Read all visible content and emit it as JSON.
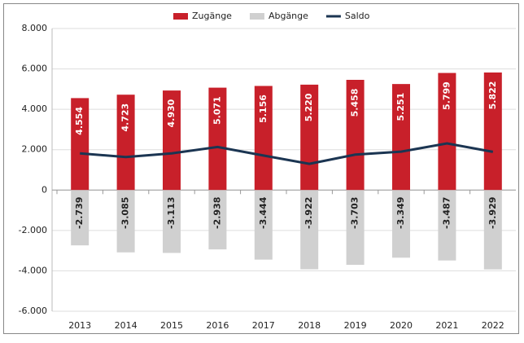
{
  "chart_data": {
    "type": "bar",
    "categories": [
      "2013",
      "2014",
      "2015",
      "2016",
      "2017",
      "2018",
      "2019",
      "2020",
      "2021",
      "2022"
    ],
    "series": [
      {
        "name": "Zugänge",
        "color": "#c8202a",
        "values": [
          4554,
          4723,
          4930,
          5071,
          5156,
          5220,
          5458,
          5251,
          5799,
          5822
        ],
        "value_labels": [
          "4.554",
          "4.723",
          "4.930",
          "5.071",
          "5.156",
          "5.220",
          "5.458",
          "5.251",
          "5.799",
          "5.822"
        ]
      },
      {
        "name": "Abgänge",
        "color": "#d0d0d0",
        "values": [
          -2739,
          -3085,
          -3113,
          -2938,
          -3444,
          -3922,
          -3703,
          -3349,
          -3487,
          -3929
        ],
        "value_labels": [
          "-2.739",
          "-3.085",
          "-3.113",
          "-2.938",
          "-3.444",
          "-3.922",
          "-3.703",
          "-3.349",
          "-3.487",
          "-3.929"
        ]
      },
      {
        "name": "Saldo",
        "color": "#1b3552",
        "type": "line",
        "values": [
          1815,
          1638,
          1817,
          2133,
          1712,
          1298,
          1755,
          1902,
          2312,
          1893
        ]
      }
    ],
    "ylim": [
      -6000,
      8000
    ],
    "yticks": [
      {
        "value": -6000,
        "label": "-6.000"
      },
      {
        "value": -4000,
        "label": "-4.000"
      },
      {
        "value": -2000,
        "label": "-2.000"
      },
      0,
      {
        "value": 2000,
        "label": "2.000"
      },
      {
        "value": 4000,
        "label": "4.000"
      },
      {
        "value": 6000,
        "label": "6.000"
      },
      {
        "value": 8000,
        "label": "8.000"
      }
    ],
    "grid": true,
    "legend": "top"
  }
}
